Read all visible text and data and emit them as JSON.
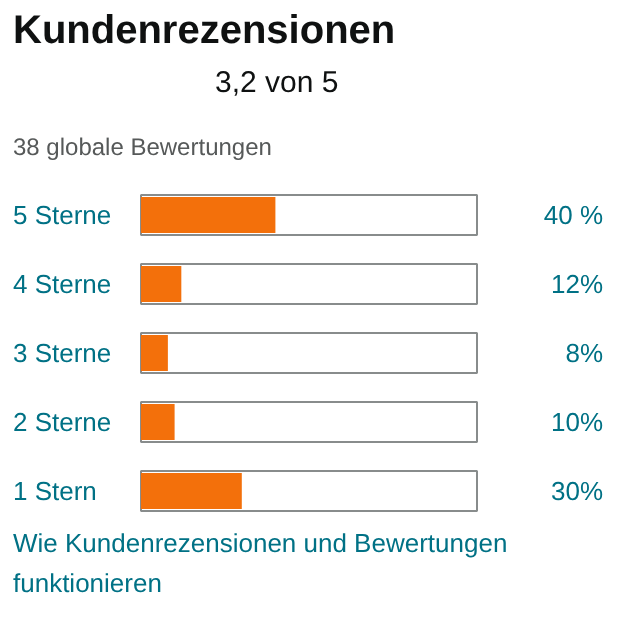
{
  "chart_data": {
    "type": "bar",
    "orientation": "horizontal",
    "title": "Kundenrezensionen",
    "subtitle": "3,2 von 5",
    "annotations": [
      "38 globale Bewertungen",
      "Wie Kundenrezensionen und Bewertungen funktionieren"
    ],
    "categories": [
      "5 Sterne",
      "4 Sterne",
      "3 Sterne",
      "2 Sterne",
      "1 Stern"
    ],
    "values": [
      40,
      12,
      8,
      10,
      30
    ],
    "value_labels": [
      "40 %",
      "12%",
      "8%",
      "10%",
      "30%"
    ],
    "color": "#f3700b",
    "xlim": [
      0,
      100
    ],
    "tick_labels": false
  }
}
